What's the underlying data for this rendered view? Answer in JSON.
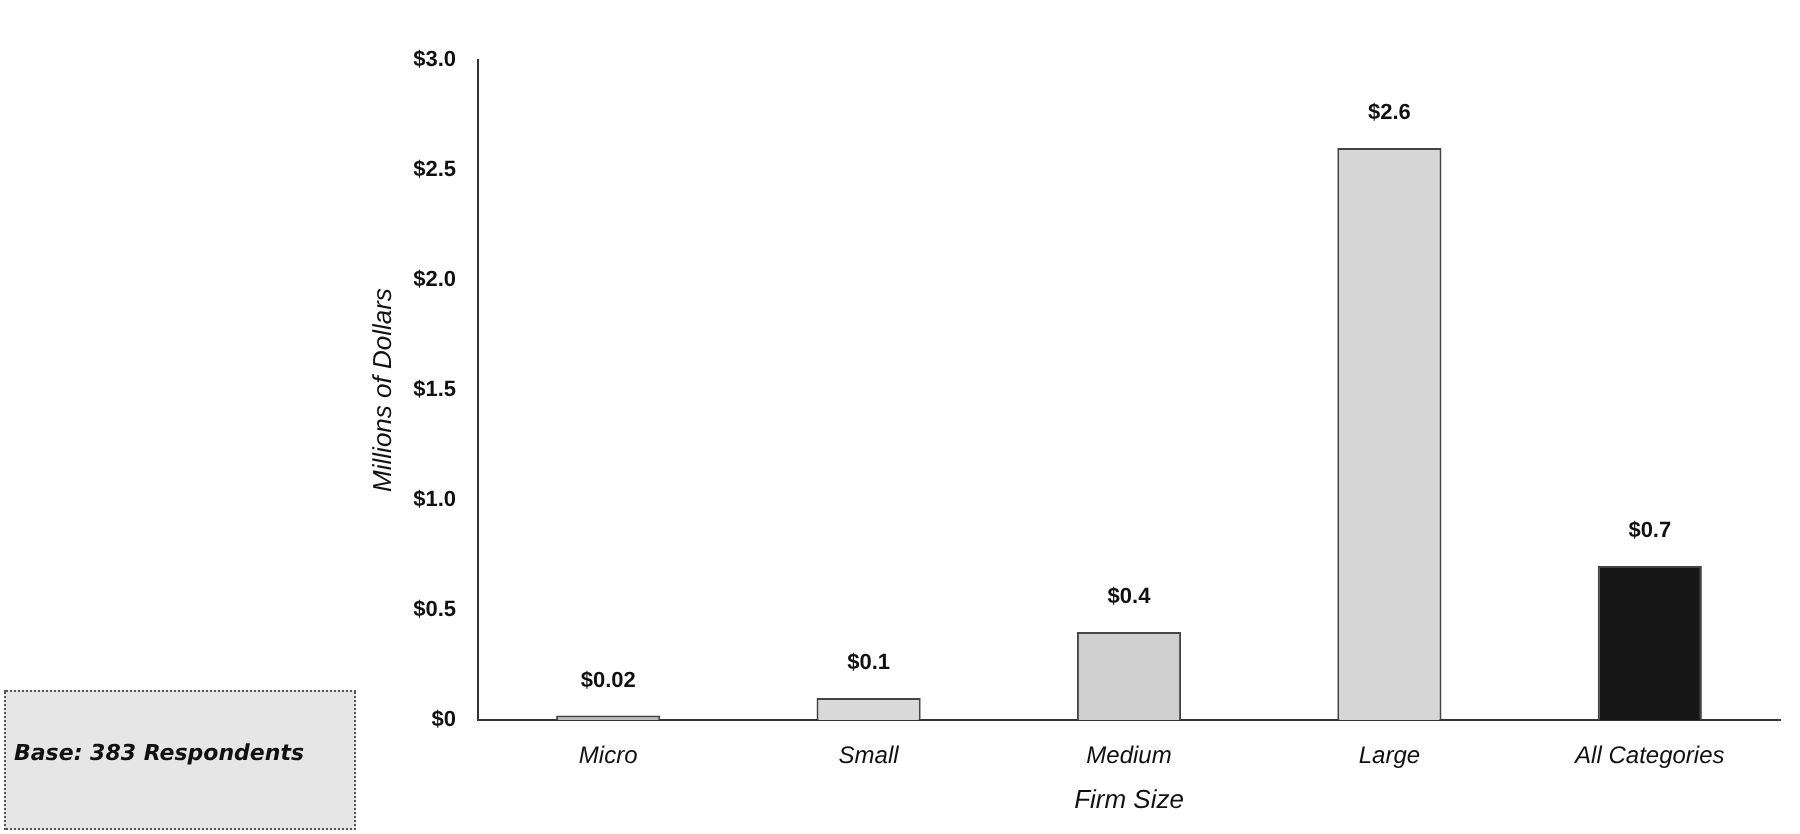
{
  "chart_data": {
    "type": "bar",
    "xlabel": "Firm Size",
    "ylabel": "Millions of Dollars",
    "categories": [
      "Micro",
      "Small",
      "Medium",
      "Large",
      "All Categories"
    ],
    "values": [
      0.02,
      0.1,
      0.4,
      2.6,
      0.7
    ],
    "colors": [
      "#bdbdbd",
      "#d9d9d9",
      "#cfcfcf",
      "#d6d6d6",
      "#161616"
    ],
    "value_labels": [
      "$0.02",
      "$0.1",
      "$0.4",
      "$2.6",
      "$0.7"
    ],
    "ylim": [
      0,
      3
    ],
    "yticks": [
      {
        "value": 0,
        "label": "$0"
      },
      {
        "value": 0.5,
        "label": "$0.5"
      },
      {
        "value": 1,
        "label": "$1.0"
      },
      {
        "value": 1.5,
        "label": "$1.5"
      },
      {
        "value": 2,
        "label": "$2.0"
      },
      {
        "value": 2.5,
        "label": "$2.5"
      },
      {
        "value": 3,
        "label": "$3.0"
      }
    ],
    "grid": false,
    "legend": false,
    "annotations": [
      "Base: 383 Respondents"
    ]
  }
}
